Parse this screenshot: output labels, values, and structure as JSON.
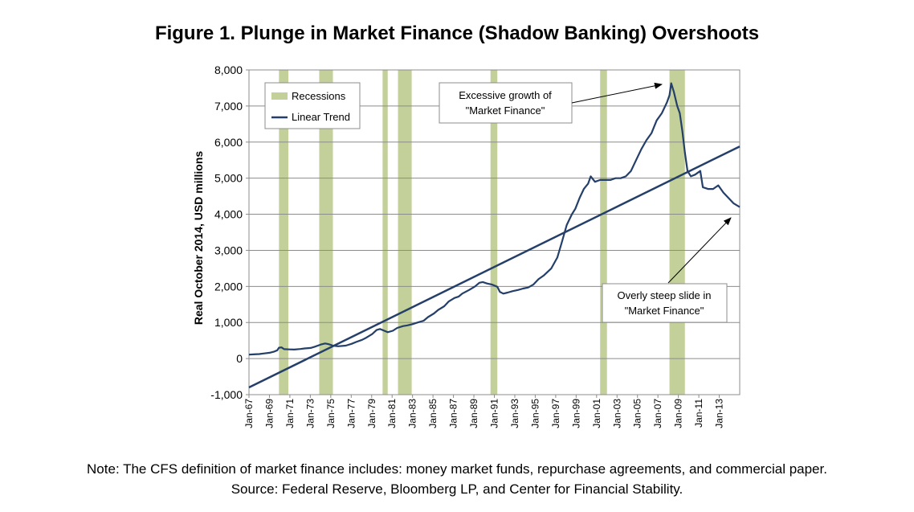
{
  "title": "Figure 1. Plunge in Market Finance (Shadow Banking) Overshoots",
  "footnote_line1": "Note: The CFS definition of market finance includes: money market funds, repurchase agreements, and commercial paper.",
  "footnote_line2": "Source: Federal Reserve, Bloomberg LP, and Center for Financial Stability.",
  "annotations": {
    "peak": [
      "Excessive growth of",
      "\"Market Finance\""
    ],
    "slide": [
      "Overly steep slide in",
      "\"Market Finance\""
    ]
  },
  "chart_data": {
    "type": "line",
    "ylabel": "Real October 2014, USD millions",
    "xlabel": "",
    "ylim": [
      -1000,
      8000
    ],
    "yticks": [
      -1000,
      0,
      1000,
      2000,
      3000,
      4000,
      5000,
      6000,
      7000,
      8000
    ],
    "ytick_labels": [
      "-1,000",
      "0",
      "1,000",
      "2,000",
      "3,000",
      "4,000",
      "5,000",
      "6,000",
      "7,000",
      "8,000"
    ],
    "xlim": [
      "1967-01",
      "2014-10"
    ],
    "xtick_labels": [
      "Jan-67",
      "Jan-69",
      "Jan-71",
      "Jan-73",
      "Jan-75",
      "Jan-77",
      "Jan-79",
      "Jan-81",
      "Jan-83",
      "Jan-85",
      "Jan-87",
      "Jan-89",
      "Jan-91",
      "Jan-93",
      "Jan-95",
      "Jan-97",
      "Jan-99",
      "Jan-01",
      "Jan-03",
      "Jan-05",
      "Jan-07",
      "Jan-09",
      "Jan-11",
      "Jan-13"
    ],
    "grid": "horizontal",
    "legend": {
      "placement": "top-left",
      "entries": [
        {
          "name": "Recessions",
          "kind": "band",
          "color": "#c3d09a"
        },
        {
          "name": "Linear Trend",
          "kind": "line",
          "color": "#243f69"
        }
      ]
    },
    "recessions": [
      [
        "1969-12",
        "1970-11"
      ],
      [
        "1973-11",
        "1975-03"
      ],
      [
        "1980-01",
        "1980-07"
      ],
      [
        "1981-07",
        "1982-11"
      ],
      [
        "1990-07",
        "1991-03"
      ],
      [
        "2001-03",
        "2001-11"
      ],
      [
        "2007-12",
        "2009-06"
      ]
    ],
    "series": [
      {
        "kind": "trend",
        "color": "#243f69",
        "points": [
          [
            "1967-01",
            -800
          ],
          [
            "2014-10",
            5880
          ]
        ]
      },
      {
        "kind": "data",
        "color": "#243f69",
        "points": [
          [
            "1967-01",
            110
          ],
          [
            "1967-06",
            115
          ],
          [
            "1968-01",
            125
          ],
          [
            "1968-06",
            140
          ],
          [
            "1969-01",
            160
          ],
          [
            "1969-06",
            190
          ],
          [
            "1969-10",
            230
          ],
          [
            "1969-12",
            300
          ],
          [
            "1970-03",
            310
          ],
          [
            "1970-06",
            260
          ],
          [
            "1970-12",
            255
          ],
          [
            "1971-06",
            250
          ],
          [
            "1972-01",
            265
          ],
          [
            "1972-06",
            280
          ],
          [
            "1973-01",
            295
          ],
          [
            "1973-06",
            330
          ],
          [
            "1974-01",
            390
          ],
          [
            "1974-06",
            420
          ],
          [
            "1974-10",
            400
          ],
          [
            "1975-03",
            360
          ],
          [
            "1975-09",
            340
          ],
          [
            "1976-06",
            360
          ],
          [
            "1977-01",
            410
          ],
          [
            "1977-06",
            460
          ],
          [
            "1978-01",
            520
          ],
          [
            "1978-06",
            580
          ],
          [
            "1979-01",
            680
          ],
          [
            "1979-06",
            790
          ],
          [
            "1979-10",
            820
          ],
          [
            "1980-03",
            770
          ],
          [
            "1980-07",
            730
          ],
          [
            "1981-01",
            770
          ],
          [
            "1981-06",
            850
          ],
          [
            "1982-01",
            900
          ],
          [
            "1982-06",
            920
          ],
          [
            "1983-01",
            960
          ],
          [
            "1983-06",
            1000
          ],
          [
            "1984-01",
            1050
          ],
          [
            "1984-06",
            1150
          ],
          [
            "1985-01",
            1250
          ],
          [
            "1985-06",
            1350
          ],
          [
            "1986-01",
            1450
          ],
          [
            "1986-06",
            1580
          ],
          [
            "1987-01",
            1680
          ],
          [
            "1987-06",
            1720
          ],
          [
            "1987-10",
            1800
          ],
          [
            "1988-06",
            1900
          ],
          [
            "1989-01",
            2000
          ],
          [
            "1989-06",
            2100
          ],
          [
            "1989-10",
            2120
          ],
          [
            "1990-03",
            2080
          ],
          [
            "1990-09",
            2050
          ],
          [
            "1991-03",
            1990
          ],
          [
            "1991-06",
            1850
          ],
          [
            "1991-10",
            1800
          ],
          [
            "1992-03",
            1830
          ],
          [
            "1992-09",
            1870
          ],
          [
            "1993-03",
            1900
          ],
          [
            "1993-09",
            1940
          ],
          [
            "1994-03",
            1970
          ],
          [
            "1994-09",
            2050
          ],
          [
            "1995-03",
            2200
          ],
          [
            "1995-09",
            2300
          ],
          [
            "1996-06",
            2500
          ],
          [
            "1997-01",
            2800
          ],
          [
            "1997-06",
            3200
          ],
          [
            "1997-12",
            3700
          ],
          [
            "1998-06",
            4000
          ],
          [
            "1998-10",
            4150
          ],
          [
            "1999-03",
            4450
          ],
          [
            "1999-08",
            4700
          ],
          [
            "2000-01",
            4850
          ],
          [
            "2000-04",
            5050
          ],
          [
            "2000-09",
            4900
          ],
          [
            "2001-03",
            4950
          ],
          [
            "2001-09",
            4950
          ],
          [
            "2002-03",
            4950
          ],
          [
            "2002-09",
            5000
          ],
          [
            "2003-03",
            5000
          ],
          [
            "2003-09",
            5050
          ],
          [
            "2004-03",
            5200
          ],
          [
            "2004-09",
            5500
          ],
          [
            "2005-03",
            5800
          ],
          [
            "2005-09",
            6050
          ],
          [
            "2006-03",
            6250
          ],
          [
            "2006-09",
            6600
          ],
          [
            "2007-03",
            6800
          ],
          [
            "2007-09",
            7100
          ],
          [
            "2007-12",
            7300
          ],
          [
            "2008-02",
            7630
          ],
          [
            "2008-05",
            7400
          ],
          [
            "2008-09",
            7000
          ],
          [
            "2008-12",
            6800
          ],
          [
            "2009-03",
            6300
          ],
          [
            "2009-06",
            5700
          ],
          [
            "2009-09",
            5200
          ],
          [
            "2010-01",
            5050
          ],
          [
            "2010-06",
            5100
          ],
          [
            "2010-12",
            5200
          ],
          [
            "2011-03",
            4750
          ],
          [
            "2011-09",
            4700
          ],
          [
            "2012-03",
            4700
          ],
          [
            "2012-09",
            4800
          ],
          [
            "2013-03",
            4600
          ],
          [
            "2013-09",
            4450
          ],
          [
            "2014-03",
            4300
          ],
          [
            "2014-10",
            4200
          ]
        ]
      }
    ]
  }
}
